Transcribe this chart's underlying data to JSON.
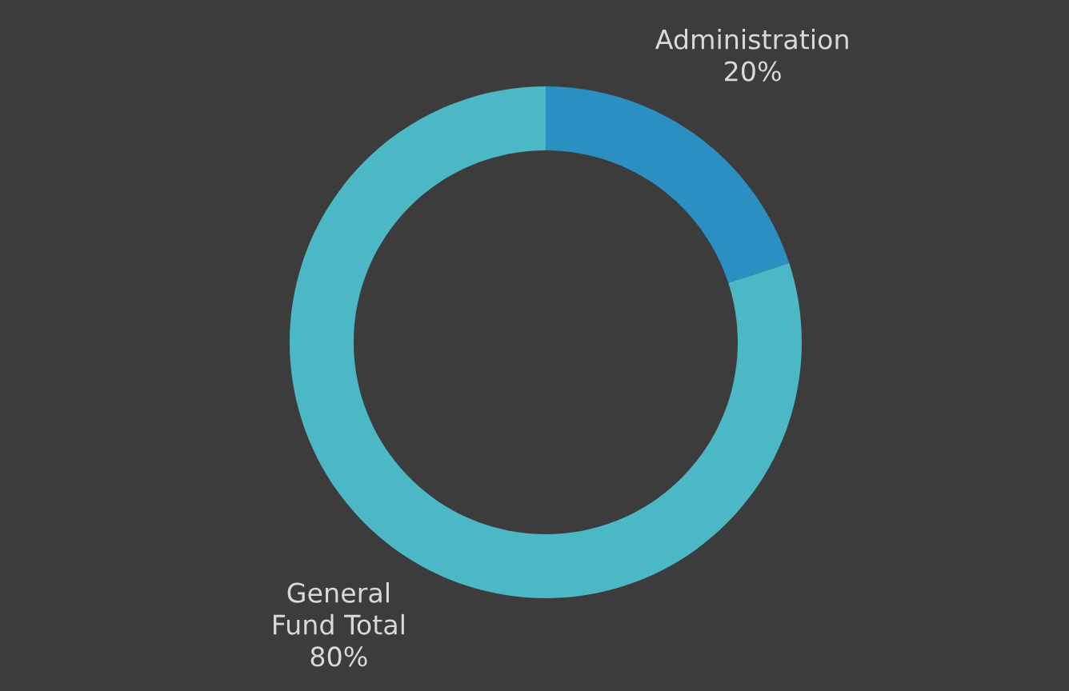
{
  "chart_data": {
    "type": "donut",
    "categories": [
      "Administration",
      "General\nFund Total"
    ],
    "values": [
      20,
      80
    ],
    "colors": [
      "#2b8fc2",
      "#4cb8c6"
    ],
    "value_labels": [
      "20%",
      "80%"
    ],
    "legend": false
  }
}
